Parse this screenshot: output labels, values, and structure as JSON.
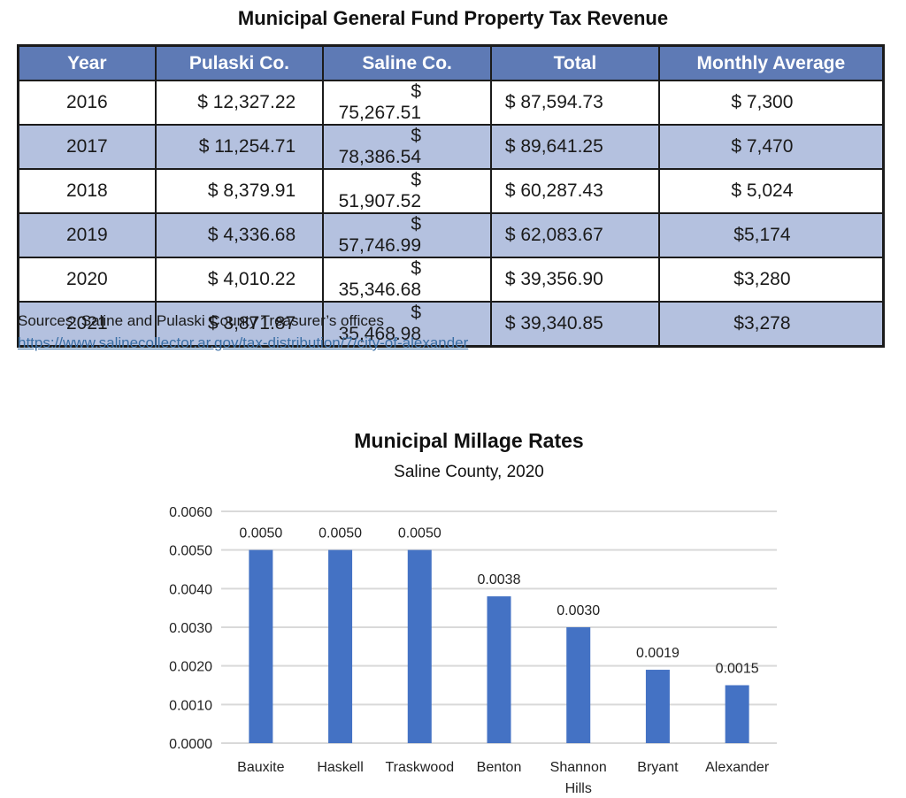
{
  "table": {
    "title": "Municipal General Fund Property Tax Revenue",
    "headers": [
      "Year",
      "Pulaski Co.",
      "Saline Co.",
      "Total",
      "Monthly Average"
    ],
    "rows": [
      [
        "2016",
        "$ 12,327.22",
        "$ 75,267.51",
        "$ 87,594.73",
        "$ 7,300"
      ],
      [
        "2017",
        "$ 11,254.71",
        "$ 78,386.54",
        "$ 89,641.25",
        "$ 7,470"
      ],
      [
        "2018",
        "$ 8,379.91",
        "$ 51,907.52",
        "$ 60,287.43",
        "$ 5,024"
      ],
      [
        "2019",
        "$ 4,336.68",
        "$ 57,746.99",
        "$ 62,083.67",
        "$5,174"
      ],
      [
        "2020",
        "$ 4,010.22",
        "$ 35,346.68",
        "$ 39,356.90",
        "$3,280"
      ],
      [
        "2021",
        "$ 3,871.87",
        "$ 35,468.98",
        "$ 39,340.85",
        "$3,278"
      ]
    ],
    "colors": {
      "header_bg": "#5e7ab5",
      "alt_row_bg": "#b4c1df"
    }
  },
  "sources": {
    "text": "Sources: Saline and Pulaski County Treasurer’s offices",
    "link": "https://www.salinecollector.ar.gov/tax-distribution/7/city-of-alexander"
  },
  "chart_data": {
    "type": "bar",
    "title": "Municipal Millage Rates",
    "subtitle": "Saline County, 2020",
    "categories": [
      "Bauxite",
      "Haskell",
      "Traskwood",
      "Benton",
      "Shannon Hills",
      "Bryant",
      "Alexander"
    ],
    "values": [
      0.005,
      0.005,
      0.005,
      0.0038,
      0.003,
      0.0019,
      0.0015
    ],
    "data_labels": [
      "0.0050",
      "0.0050",
      "0.0050",
      "0.0038",
      "0.0030",
      "0.0019",
      "0.0015"
    ],
    "ylim": [
      0,
      0.006
    ],
    "yticks": [
      "0.0000",
      "0.0010",
      "0.0020",
      "0.0030",
      "0.0040",
      "0.0050",
      "0.0060"
    ],
    "xlabel": "",
    "ylabel": "",
    "grid": true,
    "legend": "none",
    "bar_color": "#4472c4"
  }
}
